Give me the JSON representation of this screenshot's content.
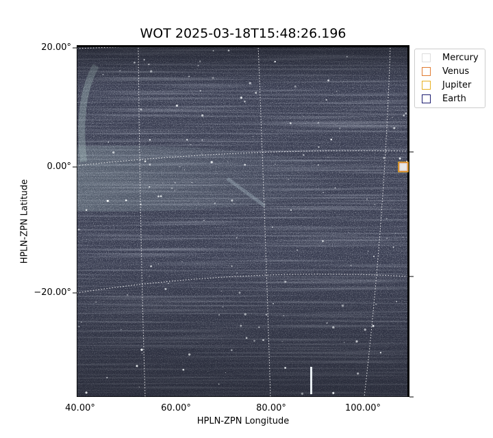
{
  "title": "WOT 2025-03-18T15:48:26.196",
  "axes": {
    "xlabel": "HPLN-ZPN Longitude",
    "ylabel": "HPLN-ZPN Latitude",
    "xticks": [
      "40.00°",
      "60.00°",
      "80.00°",
      "100.00°"
    ],
    "yticks": [
      "20.00°",
      "0.00°",
      "−20.00°"
    ]
  },
  "legend": {
    "items": [
      {
        "label": "Mercury",
        "color": "#dddddd"
      },
      {
        "label": "Venus",
        "color": "#e07a30"
      },
      {
        "label": "Jupiter",
        "color": "#e8b020"
      },
      {
        "label": "Earth",
        "color": "#1a1a6e"
      }
    ]
  },
  "markers": [
    {
      "body": "Jupiter",
      "color": "#e8b020"
    },
    {
      "body": "Venus",
      "color": "#e07a30"
    },
    {
      "body": "Mercury",
      "color": "#dddddd"
    }
  ],
  "image": {
    "colormap": "bone",
    "background": "#3a3e52"
  }
}
